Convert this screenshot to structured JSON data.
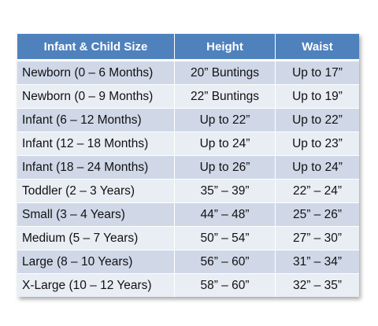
{
  "table": {
    "headers": [
      "Infant & Child Size",
      "Height",
      "Waist"
    ],
    "rows": [
      [
        "Newborn (0 – 6 Months)",
        "20” Buntings",
        "Up to 17”"
      ],
      [
        "Newborn (0 – 9 Months)",
        "22” Buntings",
        "Up to 19”"
      ],
      [
        "Infant (6 – 12 Months)",
        "Up to 22”",
        "Up to 22”"
      ],
      [
        "Infant (12 – 18 Months)",
        "Up to 24”",
        "Up to 23”"
      ],
      [
        "Infant (18 – 24 Months)",
        "Up to 26”",
        "Up to 24”"
      ],
      [
        "Toddler (2 – 3 Years)",
        "35” – 39”",
        "22” – 24”"
      ],
      [
        "Small (3 – 4 Years)",
        "44” – 48”",
        "25” – 26”"
      ],
      [
        "Medium (5 – 7 Years)",
        "50” – 54”",
        "27” – 30”"
      ],
      [
        "Large (8 – 10 Years)",
        "56” – 60”",
        "31” – 34”"
      ],
      [
        "X-Large (10 – 12 Years)",
        "58” – 60”",
        "32” – 35”"
      ]
    ]
  },
  "colors": {
    "header_bg": "#4f81bd",
    "row_odd_bg": "#d0d8e8",
    "row_even_bg": "#e9edf4"
  }
}
